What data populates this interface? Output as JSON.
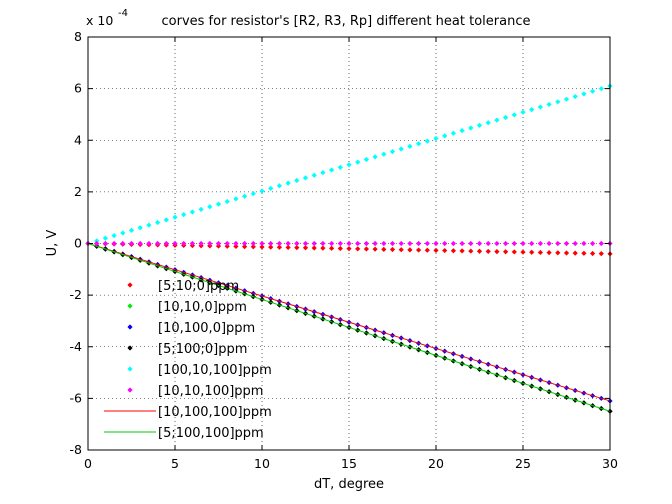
{
  "chart_data": {
    "type": "line",
    "title": "corves for resistor's  [R2, R3, Rp]  different heat tolerance",
    "xlabel": "dT, degree",
    "ylabel": "U, V",
    "exponent_label": {
      "base": "x 10",
      "power": "-4"
    },
    "xlim": [
      0,
      30
    ],
    "ylim": [
      -8,
      8
    ],
    "xticks": [
      0,
      5,
      10,
      15,
      20,
      25,
      30
    ],
    "yticks": [
      -8,
      -6,
      -4,
      -2,
      0,
      2,
      4,
      6,
      8
    ],
    "grid": true,
    "legend_position": "lower-left",
    "x": [
      0,
      30
    ],
    "series": [
      {
        "name": "[5;10;0]ppm",
        "style": "markers",
        "color": "#ff0000",
        "values": [
          0,
          -0.4
        ]
      },
      {
        "name": "[10,10,0]ppm",
        "style": "markers",
        "color": "#00ee00",
        "values": [
          0,
          -6.5
        ]
      },
      {
        "name": "[10,100,0]ppm",
        "style": "markers",
        "color": "#0000ff",
        "values": [
          0,
          -6.1
        ]
      },
      {
        "name": "[5;100;0]ppm",
        "style": "markers",
        "color": "#000000",
        "values": [
          0,
          -6.5
        ]
      },
      {
        "name": "[100,10,100]ppm",
        "style": "markers",
        "color": "#00ffff",
        "values": [
          0,
          6.1
        ]
      },
      {
        "name": "[10,10,100]ppm",
        "style": "markers",
        "color": "#ff00ff",
        "values": [
          0,
          0.0
        ]
      },
      {
        "name": "[10,100,100]ppm",
        "style": "line",
        "color": "#ff0000",
        "values": [
          0,
          -6.1
        ]
      },
      {
        "name": "[5;100,100]ppm",
        "style": "line",
        "color": "#00cc00",
        "values": [
          0,
          -6.5
        ]
      }
    ]
  }
}
